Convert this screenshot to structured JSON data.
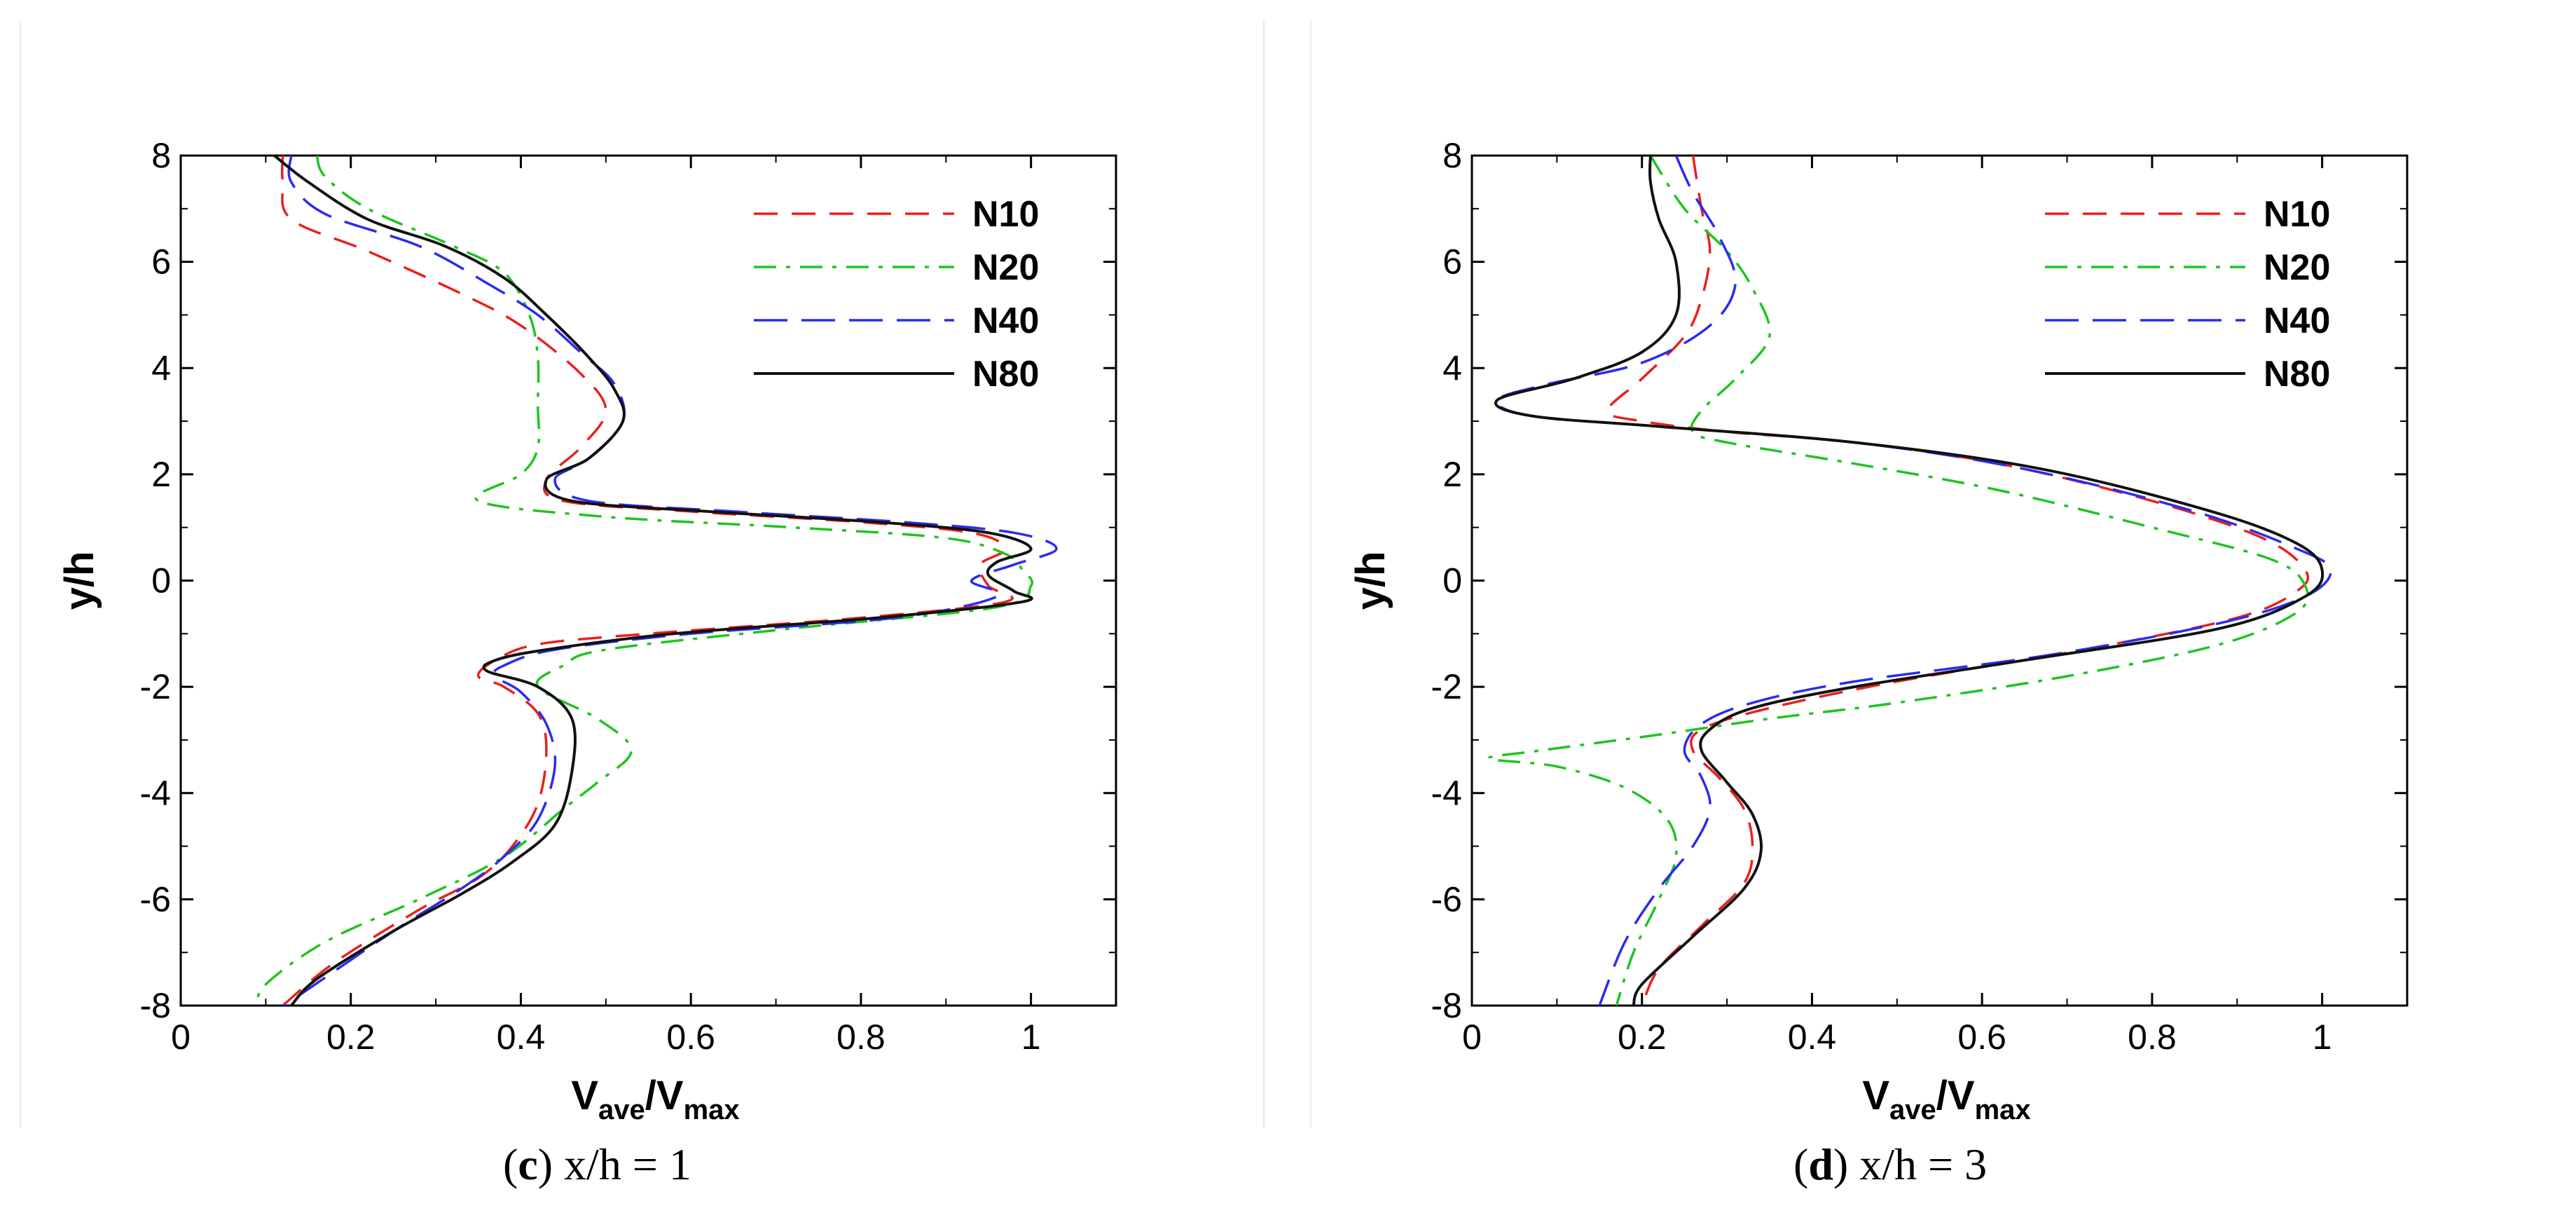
{
  "chart_data": [
    {
      "type": "line",
      "panel": "c",
      "caption_prefix": "(",
      "caption_letter": "c",
      "caption_text": ") x/h = 1",
      "xlabel": "V",
      "xlabel_sub1": "ave",
      "xlabel_mid": "/V",
      "xlabel_sub2": "max",
      "ylabel": "y/h",
      "xlim": [
        0,
        1.1
      ],
      "ylim": [
        -8,
        8
      ],
      "xticks": [
        "0",
        "0.2",
        "0.4",
        "0.6",
        "0.8",
        "1"
      ],
      "yticks": [
        "-8",
        "-6",
        "-4",
        "-2",
        "0",
        "2",
        "4",
        "6",
        "8"
      ],
      "legend_position": "top-right",
      "series": [
        {
          "name": "N10",
          "color": "#e8211d",
          "style": "dashed",
          "points": [
            [
              0.12,
              8
            ],
            [
              0.12,
              7.5
            ],
            [
              0.13,
              6.8
            ],
            [
              0.22,
              6.2
            ],
            [
              0.33,
              5.4
            ],
            [
              0.4,
              4.8
            ],
            [
              0.47,
              3.9
            ],
            [
              0.5,
              3.2
            ],
            [
              0.47,
              2.5
            ],
            [
              0.43,
              1.9
            ],
            [
              0.45,
              1.5
            ],
            [
              0.6,
              1.3
            ],
            [
              0.8,
              1.1
            ],
            [
              0.93,
              0.9
            ],
            [
              0.97,
              0.6
            ],
            [
              0.94,
              0.3
            ],
            [
              0.95,
              -0.1
            ],
            [
              0.97,
              -0.4
            ],
            [
              0.8,
              -0.7
            ],
            [
              0.55,
              -1.0
            ],
            [
              0.42,
              -1.2
            ],
            [
              0.37,
              -1.5
            ],
            [
              0.35,
              -1.8
            ],
            [
              0.38,
              -2.0
            ],
            [
              0.42,
              -2.5
            ],
            [
              0.43,
              -3.2
            ],
            [
              0.42,
              -4.2
            ],
            [
              0.39,
              -5.0
            ],
            [
              0.35,
              -5.6
            ],
            [
              0.28,
              -6.2
            ],
            [
              0.18,
              -7.2
            ],
            [
              0.12,
              -8
            ]
          ]
        },
        {
          "name": "N20",
          "color": "#1fc41f",
          "style": "dashdot",
          "points": [
            [
              0.16,
              8
            ],
            [
              0.17,
              7.6
            ],
            [
              0.22,
              7.0
            ],
            [
              0.32,
              6.3
            ],
            [
              0.38,
              5.8
            ],
            [
              0.41,
              5.0
            ],
            [
              0.42,
              4.2
            ],
            [
              0.42,
              3.3
            ],
            [
              0.42,
              2.5
            ],
            [
              0.4,
              2.0
            ],
            [
              0.35,
              1.5
            ],
            [
              0.5,
              1.2
            ],
            [
              0.72,
              1.0
            ],
            [
              0.9,
              0.8
            ],
            [
              0.97,
              0.5
            ],
            [
              0.99,
              0.2
            ],
            [
              1.0,
              -0.1
            ],
            [
              0.96,
              -0.5
            ],
            [
              0.72,
              -0.9
            ],
            [
              0.5,
              -1.3
            ],
            [
              0.45,
              -1.6
            ],
            [
              0.42,
              -2.0
            ],
            [
              0.49,
              -2.6
            ],
            [
              0.53,
              -3.2
            ],
            [
              0.49,
              -3.8
            ],
            [
              0.45,
              -4.3
            ],
            [
              0.38,
              -5.2
            ],
            [
              0.28,
              -6.0
            ],
            [
              0.17,
              -6.8
            ],
            [
              0.1,
              -7.6
            ],
            [
              0.09,
              -8
            ]
          ]
        },
        {
          "name": "N40",
          "color": "#2b2bf0",
          "style": "longdash",
          "points": [
            [
              0.13,
              8
            ],
            [
              0.13,
              7.5
            ],
            [
              0.17,
              6.9
            ],
            [
              0.28,
              6.3
            ],
            [
              0.36,
              5.6
            ],
            [
              0.42,
              5.0
            ],
            [
              0.47,
              4.3
            ],
            [
              0.51,
              3.7
            ],
            [
              0.52,
              3.0
            ],
            [
              0.48,
              2.3
            ],
            [
              0.44,
              1.9
            ],
            [
              0.48,
              1.5
            ],
            [
              0.65,
              1.3
            ],
            [
              0.85,
              1.1
            ],
            [
              0.98,
              0.9
            ],
            [
              1.03,
              0.6
            ],
            [
              0.98,
              0.3
            ],
            [
              0.93,
              0.0
            ],
            [
              0.96,
              -0.3
            ],
            [
              0.84,
              -0.7
            ],
            [
              0.6,
              -1.0
            ],
            [
              0.44,
              -1.3
            ],
            [
              0.38,
              -1.6
            ],
            [
              0.37,
              -1.8
            ],
            [
              0.4,
              -2.1
            ],
            [
              0.43,
              -2.7
            ],
            [
              0.44,
              -3.5
            ],
            [
              0.42,
              -4.5
            ],
            [
              0.38,
              -5.2
            ],
            [
              0.33,
              -5.8
            ],
            [
              0.25,
              -6.6
            ],
            [
              0.14,
              -7.8
            ],
            [
              0.12,
              -8
            ]
          ]
        },
        {
          "name": "N80",
          "color": "#111111",
          "style": "solid",
          "points": [
            [
              0.11,
              8
            ],
            [
              0.15,
              7.5
            ],
            [
              0.22,
              6.8
            ],
            [
              0.31,
              6.3
            ],
            [
              0.38,
              5.7
            ],
            [
              0.43,
              5.0
            ],
            [
              0.48,
              4.2
            ],
            [
              0.51,
              3.6
            ],
            [
              0.52,
              3.0
            ],
            [
              0.48,
              2.3
            ],
            [
              0.43,
              1.9
            ],
            [
              0.46,
              1.5
            ],
            [
              0.62,
              1.3
            ],
            [
              0.82,
              1.1
            ],
            [
              0.95,
              0.9
            ],
            [
              1.0,
              0.6
            ],
            [
              0.96,
              0.35
            ],
            [
              0.95,
              0.1
            ],
            [
              0.98,
              -0.2
            ],
            [
              0.99,
              -0.4
            ],
            [
              0.82,
              -0.7
            ],
            [
              0.58,
              -1.0
            ],
            [
              0.43,
              -1.3
            ],
            [
              0.37,
              -1.5
            ],
            [
              0.36,
              -1.7
            ],
            [
              0.42,
              -2.0
            ],
            [
              0.46,
              -2.6
            ],
            [
              0.46,
              -3.6
            ],
            [
              0.44,
              -4.6
            ],
            [
              0.39,
              -5.3
            ],
            [
              0.33,
              -5.9
            ],
            [
              0.25,
              -6.6
            ],
            [
              0.16,
              -7.5
            ],
            [
              0.13,
              -8
            ]
          ]
        }
      ]
    },
    {
      "type": "line",
      "panel": "d",
      "caption_prefix": "(",
      "caption_letter": "d",
      "caption_text": ") x/h = 3",
      "xlabel": "V",
      "xlabel_sub1": "ave",
      "xlabel_mid": "/V",
      "xlabel_sub2": "max",
      "ylabel": "y/h",
      "xlim": [
        0,
        1.1
      ],
      "ylim": [
        -8,
        8
      ],
      "xticks": [
        "0",
        "0.2",
        "0.4",
        "0.6",
        "0.8",
        "1"
      ],
      "yticks": [
        "-8",
        "-6",
        "-4",
        "-2",
        "0",
        "2",
        "4",
        "6",
        "8"
      ],
      "legend_position": "top-right",
      "series": [
        {
          "name": "N10",
          "color": "#e8211d",
          "style": "dashed",
          "points": [
            [
              0.26,
              8
            ],
            [
              0.27,
              7.0
            ],
            [
              0.28,
              6.2
            ],
            [
              0.27,
              5.3
            ],
            [
              0.25,
              4.6
            ],
            [
              0.2,
              3.8
            ],
            [
              0.16,
              3.2
            ],
            [
              0.2,
              3.0
            ],
            [
              0.3,
              2.8
            ],
            [
              0.45,
              2.6
            ],
            [
              0.62,
              2.2
            ],
            [
              0.8,
              1.5
            ],
            [
              0.93,
              0.8
            ],
            [
              0.98,
              0.2
            ],
            [
              0.97,
              -0.2
            ],
            [
              0.9,
              -0.7
            ],
            [
              0.72,
              -1.3
            ],
            [
              0.5,
              -1.9
            ],
            [
              0.35,
              -2.4
            ],
            [
              0.27,
              -2.8
            ],
            [
              0.26,
              -3.2
            ],
            [
              0.29,
              -3.7
            ],
            [
              0.32,
              -4.3
            ],
            [
              0.33,
              -5.0
            ],
            [
              0.32,
              -5.7
            ],
            [
              0.27,
              -6.5
            ],
            [
              0.22,
              -7.3
            ],
            [
              0.2,
              -8
            ]
          ]
        },
        {
          "name": "N20",
          "color": "#1fc41f",
          "style": "dashdot",
          "points": [
            [
              0.21,
              8
            ],
            [
              0.25,
              7.0
            ],
            [
              0.3,
              6.2
            ],
            [
              0.33,
              5.5
            ],
            [
              0.35,
              4.6
            ],
            [
              0.31,
              3.8
            ],
            [
              0.27,
              3.2
            ],
            [
              0.26,
              2.8
            ],
            [
              0.3,
              2.6
            ],
            [
              0.45,
              2.2
            ],
            [
              0.62,
              1.7
            ],
            [
              0.8,
              1.0
            ],
            [
              0.94,
              0.4
            ],
            [
              0.98,
              -0.1
            ],
            [
              0.97,
              -0.6
            ],
            [
              0.88,
              -1.2
            ],
            [
              0.7,
              -1.8
            ],
            [
              0.5,
              -2.3
            ],
            [
              0.35,
              -2.6
            ],
            [
              0.22,
              -2.9
            ],
            [
              0.08,
              -3.2
            ],
            [
              0.02,
              -3.35
            ],
            [
              0.1,
              -3.5
            ],
            [
              0.18,
              -3.9
            ],
            [
              0.23,
              -4.5
            ],
            [
              0.24,
              -5.2
            ],
            [
              0.22,
              -6.0
            ],
            [
              0.19,
              -7.0
            ],
            [
              0.17,
              -8
            ]
          ]
        },
        {
          "name": "N40",
          "color": "#2b2bf0",
          "style": "longdash",
          "points": [
            [
              0.24,
              8
            ],
            [
              0.26,
              7.3
            ],
            [
              0.29,
              6.5
            ],
            [
              0.31,
              5.6
            ],
            [
              0.28,
              4.8
            ],
            [
              0.2,
              4.1
            ],
            [
              0.09,
              3.7
            ],
            [
              0.03,
              3.4
            ],
            [
              0.07,
              3.1
            ],
            [
              0.22,
              2.9
            ],
            [
              0.45,
              2.6
            ],
            [
              0.65,
              2.1
            ],
            [
              0.85,
              1.3
            ],
            [
              0.97,
              0.6
            ],
            [
              1.01,
              0.2
            ],
            [
              0.98,
              -0.3
            ],
            [
              0.88,
              -0.8
            ],
            [
              0.68,
              -1.4
            ],
            [
              0.45,
              -1.9
            ],
            [
              0.33,
              -2.3
            ],
            [
              0.27,
              -2.7
            ],
            [
              0.25,
              -3.2
            ],
            [
              0.27,
              -3.7
            ],
            [
              0.28,
              -4.3
            ],
            [
              0.26,
              -5.0
            ],
            [
              0.22,
              -5.8
            ],
            [
              0.18,
              -6.8
            ],
            [
              0.15,
              -8
            ]
          ]
        },
        {
          "name": "N80",
          "color": "#111111",
          "style": "solid",
          "points": [
            [
              0.21,
              8
            ],
            [
              0.21,
              7.5
            ],
            [
              0.22,
              6.8
            ],
            [
              0.24,
              6.0
            ],
            [
              0.24,
              5.0
            ],
            [
              0.2,
              4.3
            ],
            [
              0.12,
              3.8
            ],
            [
              0.03,
              3.4
            ],
            [
              0.07,
              3.1
            ],
            [
              0.22,
              2.9
            ],
            [
              0.45,
              2.6
            ],
            [
              0.67,
              2.1
            ],
            [
              0.87,
              1.3
            ],
            [
              0.97,
              0.7
            ],
            [
              1.0,
              0.2
            ],
            [
              0.98,
              -0.3
            ],
            [
              0.88,
              -0.9
            ],
            [
              0.65,
              -1.5
            ],
            [
              0.45,
              -2.0
            ],
            [
              0.33,
              -2.4
            ],
            [
              0.28,
              -2.8
            ],
            [
              0.27,
              -3.2
            ],
            [
              0.3,
              -3.8
            ],
            [
              0.33,
              -4.4
            ],
            [
              0.34,
              -5.1
            ],
            [
              0.32,
              -5.8
            ],
            [
              0.26,
              -6.7
            ],
            [
              0.2,
              -7.6
            ],
            [
              0.19,
              -8
            ]
          ]
        }
      ]
    }
  ]
}
